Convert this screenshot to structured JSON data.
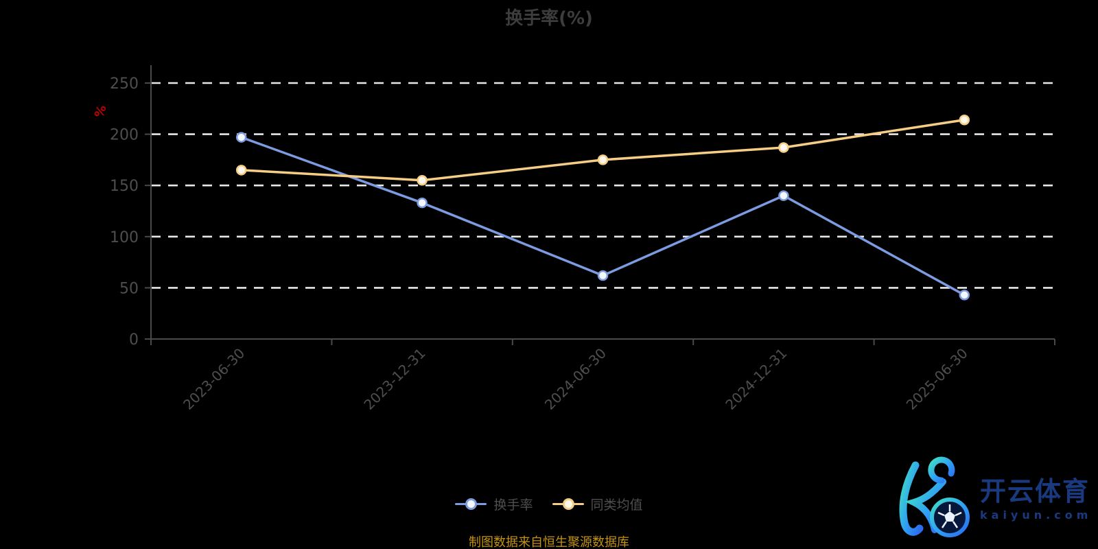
{
  "chart_data": {
    "type": "line",
    "title": "换手率(%)",
    "categories": [
      "2023-06-30",
      "2023-12-31",
      "2024-06-30",
      "2024-12-31",
      "2025-06-30"
    ],
    "series": [
      {
        "name": "换手率",
        "color": "#7d9be0",
        "marker_fill": "#f4f8ff",
        "values": [
          197,
          133,
          62,
          140,
          43
        ]
      },
      {
        "name": "同类均值",
        "color": "#f5cd85",
        "marker_fill": "#fff8ea",
        "values": [
          165,
          155,
          175,
          187,
          214
        ]
      }
    ],
    "xlabel": "",
    "ylabel": "%",
    "ylim": [
      0,
      250
    ],
    "yticks": [
      0,
      50,
      100,
      150,
      200,
      250
    ],
    "x_label_rotation": 45,
    "grid": "horizontal-dashed",
    "legend_position": "bottom-center"
  },
  "footer": {
    "source_text": "制图数据来自恒生聚源数据库"
  },
  "watermark": {
    "brand_cn": "开云体育",
    "brand_domain": "kaiyun.com"
  },
  "colors": {
    "background": "#000000",
    "title": "#3d3d3d",
    "axis": "#4a4a4a",
    "tick_label": "#4e4e4e",
    "gridline": "#e8e8e8",
    "y_unit": "#c00000",
    "legend_text": "#4e4e4e",
    "source_text": "#c3930f",
    "brand_text": "#1a3a80",
    "brand_gradient_start": "#3fe0c5",
    "brand_gradient_mid": "#2f9df5",
    "brand_gradient_end": "#2b6cf0",
    "ball_fill": "#07173a"
  }
}
